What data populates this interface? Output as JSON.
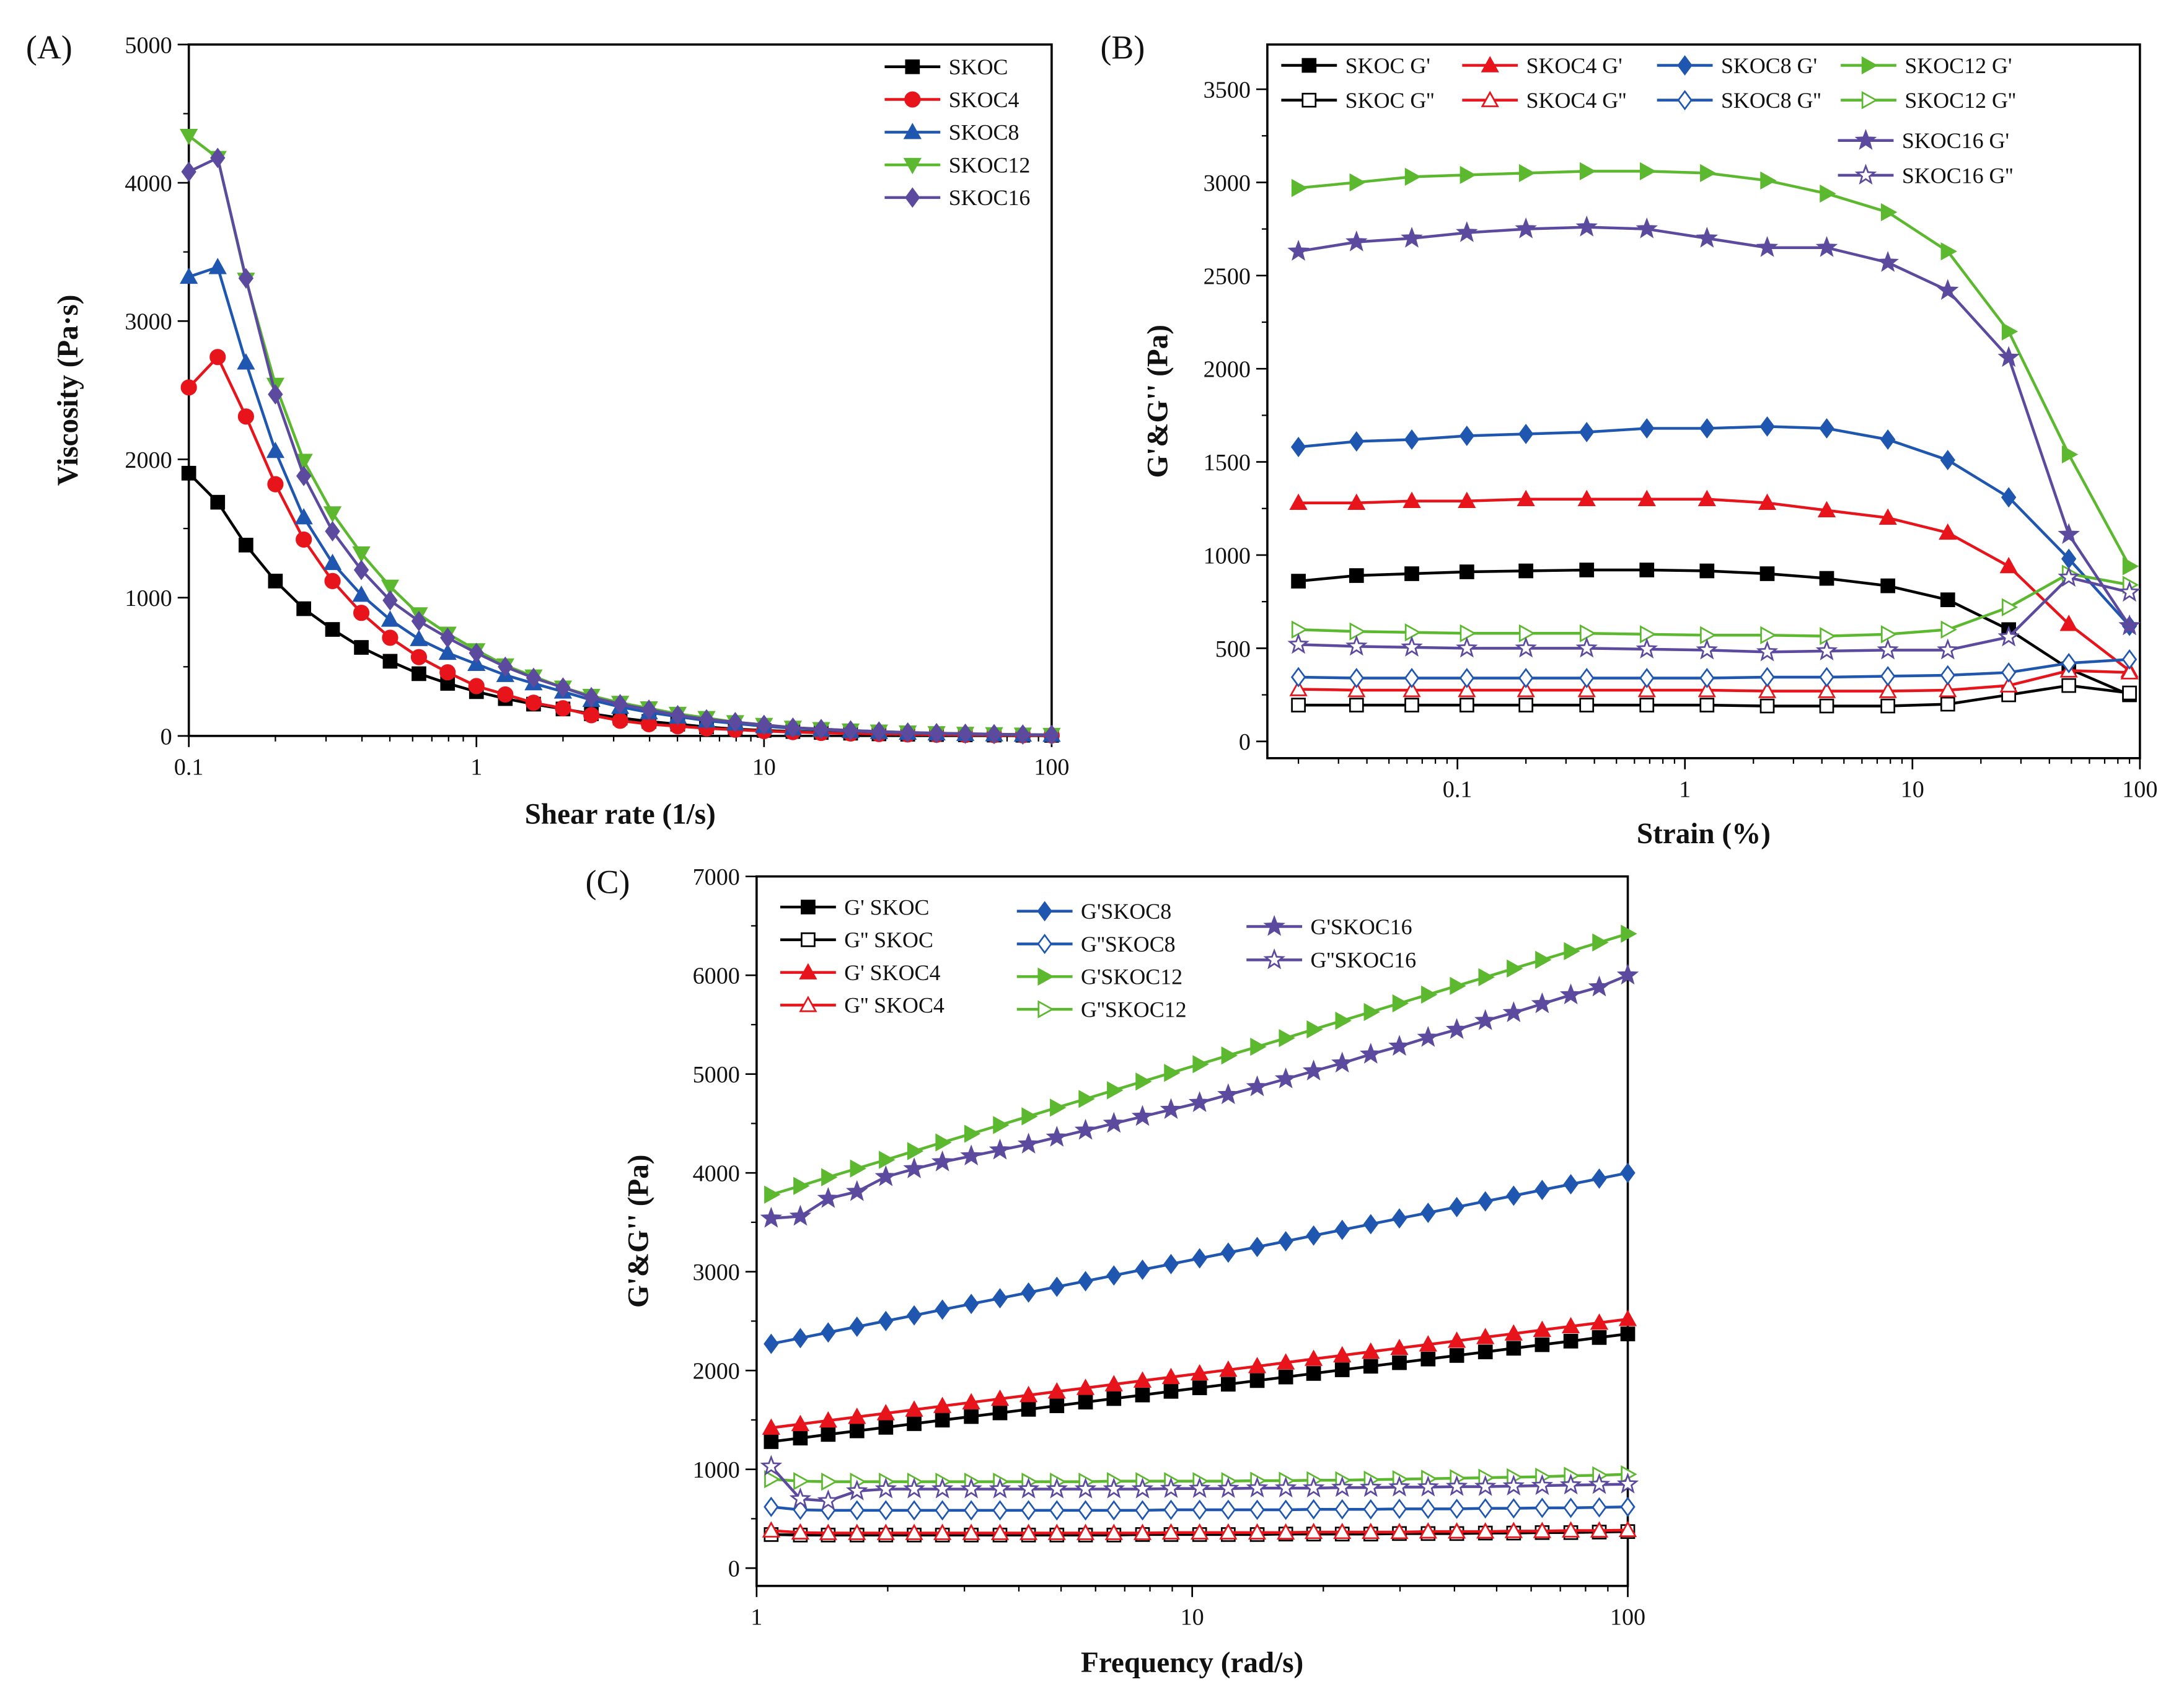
{
  "chart_data": [
    {
      "panel": "(A)",
      "type": "line",
      "xlabel": "Shear rate (1/s)",
      "ylabel": "Viscosity (Pa·s)",
      "xscale": "log",
      "xlim": [
        0.1,
        100
      ],
      "ylim": [
        0,
        5000
      ],
      "xticks": [
        {
          "v": 0.1,
          "label": "0.1"
        },
        {
          "v": 1,
          "label": "1"
        },
        {
          "v": 10,
          "label": "10"
        },
        {
          "v": 100,
          "label": "100"
        }
      ],
      "yticks": [
        {
          "v": 0,
          "label": "0"
        },
        {
          "v": 1000,
          "label": "1000"
        },
        {
          "v": 2000,
          "label": "2000"
        },
        {
          "v": 3000,
          "label": "3000"
        },
        {
          "v": 4000,
          "label": "4000"
        },
        {
          "v": 5000,
          "label": "5000"
        }
      ],
      "legend": "top-right",
      "x": [
        0.1,
        0.126,
        0.158,
        0.2,
        0.251,
        0.316,
        0.398,
        0.501,
        0.631,
        0.794,
        1,
        1.26,
        1.58,
        2,
        2.51,
        3.16,
        3.98,
        5.01,
        6.31,
        7.94,
        10,
        12.6,
        15.8,
        20,
        25.1,
        31.6,
        39.8,
        50.1,
        63.1,
        79.4,
        100
      ],
      "series": [
        {
          "name": "SKOC",
          "color": "#000000",
          "marker": "square",
          "filled": true,
          "values": [
            1900,
            1690,
            1380,
            1120,
            920,
            770,
            640,
            540,
            450,
            380,
            320,
            270,
            230,
            195,
            160,
            130,
            105,
            85,
            65,
            50,
            40,
            32,
            25,
            20,
            15,
            12,
            10,
            8,
            6,
            5,
            4
          ]
        },
        {
          "name": "SKOC4",
          "color": "#e8141b",
          "marker": "circle",
          "filled": true,
          "values": [
            2520,
            2740,
            2310,
            1820,
            1420,
            1120,
            890,
            710,
            570,
            460,
            360,
            300,
            240,
            200,
            150,
            110,
            85,
            70,
            55,
            45,
            35,
            28,
            22,
            18,
            14,
            11,
            9,
            7,
            6,
            5,
            4
          ]
        },
        {
          "name": "SKOC8",
          "color": "#1f56b0",
          "marker": "triangle-up",
          "filled": true,
          "values": [
            3320,
            3390,
            2700,
            2060,
            1580,
            1250,
            1020,
            840,
            700,
            600,
            520,
            440,
            380,
            320,
            260,
            210,
            170,
            140,
            110,
            90,
            70,
            55,
            45,
            35,
            28,
            22,
            18,
            14,
            11,
            9,
            7
          ]
        },
        {
          "name": "SKOC12",
          "color": "#5cb82e",
          "marker": "triangle-down",
          "filled": true,
          "values": [
            4340,
            4180,
            3300,
            2540,
            1990,
            1610,
            1320,
            1080,
            880,
            740,
            620,
            510,
            430,
            350,
            290,
            240,
            200,
            160,
            130,
            100,
            80,
            60,
            50,
            40,
            32,
            25,
            20,
            16,
            13,
            10,
            8
          ]
        },
        {
          "name": "SKOC16",
          "color": "#5b4a9e",
          "marker": "diamond",
          "filled": true,
          "values": [
            4080,
            4180,
            3310,
            2470,
            1880,
            1480,
            1200,
            980,
            830,
            710,
            600,
            500,
            420,
            350,
            280,
            230,
            190,
            150,
            120,
            100,
            80,
            60,
            50,
            40,
            32,
            25,
            20,
            16,
            13,
            10,
            8
          ]
        }
      ]
    },
    {
      "panel": "(B)",
      "type": "line",
      "xlabel": "Strain (%)",
      "ylabel": "G'&G'' (Pa)",
      "xscale": "log",
      "xlim": [
        0.0146,
        100
      ],
      "ylim": [
        -90,
        3740
      ],
      "xticks": [
        {
          "v": 0.1,
          "label": "0.1"
        },
        {
          "v": 1,
          "label": "1"
        },
        {
          "v": 10,
          "label": "10"
        },
        {
          "v": 100,
          "label": "100"
        }
      ],
      "yticks": [
        {
          "v": 0,
          "label": "0"
        },
        {
          "v": 500,
          "label": "500"
        },
        {
          "v": 1000,
          "label": "1000"
        },
        {
          "v": 1500,
          "label": "1500"
        },
        {
          "v": 2000,
          "label": "2000"
        },
        {
          "v": 2500,
          "label": "2500"
        },
        {
          "v": 3000,
          "label": "3000"
        },
        {
          "v": 3500,
          "label": "3500"
        }
      ],
      "legend": "top",
      "x": [
        0.02,
        0.036,
        0.063,
        0.11,
        0.2,
        0.37,
        0.68,
        1.25,
        2.3,
        4.2,
        7.8,
        14.3,
        26.5,
        48.7,
        90
      ],
      "series": [
        {
          "name": "SKOC G'",
          "color": "#000000",
          "marker": "square",
          "filled": true,
          "values": [
            860,
            890,
            900,
            910,
            915,
            920,
            920,
            915,
            900,
            875,
            835,
            760,
            600,
            390,
            250
          ]
        },
        {
          "name": "SKOC4 G'",
          "color": "#e8141b",
          "marker": "triangle-up",
          "filled": true,
          "values": [
            1280,
            1280,
            1290,
            1290,
            1300,
            1300,
            1300,
            1300,
            1280,
            1240,
            1200,
            1120,
            940,
            630,
            380
          ]
        },
        {
          "name": "SKOC8 G'",
          "color": "#1f56b0",
          "marker": "diamond",
          "filled": true,
          "values": [
            1580,
            1610,
            1620,
            1640,
            1650,
            1660,
            1680,
            1680,
            1690,
            1680,
            1620,
            1510,
            1310,
            980,
            620
          ]
        },
        {
          "name": "SKOC12 G'",
          "color": "#5cb82e",
          "marker": "triangle-right",
          "filled": true,
          "values": [
            2970,
            3000,
            3030,
            3040,
            3050,
            3060,
            3060,
            3050,
            3010,
            2940,
            2840,
            2630,
            2200,
            1540,
            940
          ]
        },
        {
          "name": "SKOC G''",
          "color": "#000000",
          "marker": "square",
          "filled": false,
          "values": [
            195,
            195,
            195,
            195,
            195,
            195,
            195,
            195,
            190,
            190,
            190,
            200,
            250,
            300,
            260
          ]
        },
        {
          "name": "SKOC4 G''",
          "color": "#e8141b",
          "marker": "triangle-up",
          "filled": false,
          "values": [
            280,
            275,
            275,
            275,
            275,
            275,
            275,
            275,
            270,
            270,
            270,
            275,
            300,
            380,
            370
          ]
        },
        {
          "name": "SKOC8 G''",
          "color": "#1f56b0",
          "marker": "diamond",
          "filled": false,
          "values": [
            345,
            340,
            340,
            340,
            340,
            340,
            340,
            340,
            345,
            345,
            350,
            355,
            370,
            420,
            440
          ]
        },
        {
          "name": "SKOC12 G''",
          "color": "#5cb82e",
          "marker": "triangle-right",
          "filled": false,
          "values": [
            600,
            590,
            585,
            580,
            580,
            580,
            575,
            570,
            570,
            565,
            575,
            600,
            720,
            900,
            840
          ]
        },
        {
          "name": "SKOC16 G'",
          "color": "#5b4a9e",
          "marker": "star",
          "filled": true,
          "values": [
            2630,
            2680,
            2700,
            2730,
            2750,
            2760,
            2750,
            2700,
            2650,
            2650,
            2570,
            2420,
            2060,
            1110,
            620
          ]
        },
        {
          "name": "SKOC16 G''",
          "color": "#5b4a9e",
          "marker": "star",
          "filled": false,
          "values": [
            520,
            510,
            505,
            500,
            500,
            500,
            495,
            490,
            480,
            485,
            490,
            490,
            560,
            880,
            800
          ]
        }
      ]
    },
    {
      "panel": "(C)",
      "type": "line",
      "xlabel": "Frequency (rad/s)",
      "ylabel": "G'&G'' (Pa)",
      "xscale": "log",
      "xlim": [
        1,
        100
      ],
      "ylim": [
        -180,
        7000
      ],
      "xticks": [
        {
          "v": 1,
          "label": "1"
        },
        {
          "v": 10,
          "label": "10"
        },
        {
          "v": 100,
          "label": "100"
        }
      ],
      "yticks": [
        {
          "v": 0,
          "label": "0"
        },
        {
          "v": 1000,
          "label": "1000"
        },
        {
          "v": 2000,
          "label": "2000"
        },
        {
          "v": 3000,
          "label": "3000"
        },
        {
          "v": 4000,
          "label": "4000"
        },
        {
          "v": 5000,
          "label": "5000"
        },
        {
          "v": 6000,
          "label": "6000"
        },
        {
          "v": 7000,
          "label": "7000"
        }
      ],
      "legend": "top-left",
      "x": [
        1.08,
        1.26,
        1.46,
        1.7,
        1.98,
        2.3,
        2.67,
        3.11,
        3.62,
        4.21,
        4.89,
        5.69,
        6.61,
        7.69,
        8.94,
        10.4,
        12.1,
        14.1,
        16.4,
        19.0,
        22.1,
        25.7,
        29.9,
        34.8,
        40.5,
        47.1,
        54.7,
        63.6,
        74.0,
        86.0,
        100
      ],
      "series": [
        {
          "name": "G' SKOC",
          "color": "#000000",
          "marker": "square",
          "filled": true,
          "values": [
            1280,
            1316,
            1353,
            1389,
            1425,
            1462,
            1498,
            1534,
            1571,
            1607,
            1643,
            1680,
            1716,
            1752,
            1789,
            1825,
            1861,
            1898,
            1934,
            1970,
            2007,
            2043,
            2079,
            2116,
            2152,
            2188,
            2225,
            2261,
            2297,
            2334,
            2370
          ]
        },
        {
          "name": "G'' SKOC",
          "color": "#000000",
          "marker": "square",
          "filled": false,
          "values": [
            340,
            335,
            335,
            335,
            335,
            335,
            335,
            335,
            335,
            335,
            335,
            335,
            335,
            340,
            340,
            340,
            340,
            340,
            345,
            345,
            345,
            345,
            350,
            350,
            350,
            355,
            355,
            360,
            360,
            365,
            370
          ]
        },
        {
          "name": "G' SKOC4",
          "color": "#e8141b",
          "marker": "triangle-up",
          "filled": true,
          "values": [
            1420,
            1457,
            1493,
            1530,
            1567,
            1603,
            1640,
            1677,
            1713,
            1750,
            1787,
            1823,
            1860,
            1897,
            1933,
            1970,
            2007,
            2043,
            2080,
            2117,
            2153,
            2190,
            2227,
            2263,
            2300,
            2337,
            2373,
            2410,
            2447,
            2483,
            2520
          ]
        },
        {
          "name": "G'' SKOC4",
          "color": "#e8141b",
          "marker": "triangle-up",
          "filled": false,
          "values": [
            380,
            360,
            355,
            355,
            355,
            355,
            355,
            355,
            355,
            355,
            355,
            355,
            355,
            355,
            360,
            360,
            360,
            360,
            360,
            365,
            365,
            365,
            365,
            370,
            370,
            370,
            375,
            375,
            380,
            380,
            385
          ]
        },
        {
          "name": "G'SKOC8",
          "color": "#1f56b0",
          "marker": "diamond",
          "filled": true,
          "values": [
            2270,
            2328,
            2385,
            2443,
            2501,
            2558,
            2616,
            2674,
            2731,
            2789,
            2847,
            2904,
            2962,
            3020,
            3077,
            3135,
            3193,
            3250,
            3308,
            3366,
            3423,
            3481,
            3539,
            3596,
            3654,
            3712,
            3769,
            3827,
            3885,
            3942,
            4000
          ]
        },
        {
          "name": "G''SKOC8",
          "color": "#1f56b0",
          "marker": "diamond",
          "filled": false,
          "values": [
            620,
            590,
            585,
            585,
            585,
            585,
            585,
            585,
            585,
            585,
            585,
            585,
            585,
            585,
            590,
            590,
            590,
            590,
            590,
            595,
            595,
            595,
            600,
            600,
            600,
            605,
            605,
            610,
            610,
            615,
            620
          ]
        },
        {
          "name": "G'SKOC12",
          "color": "#5cb82e",
          "marker": "triangle-right",
          "filled": true,
          "values": [
            3780,
            3868,
            3956,
            4044,
            4132,
            4220,
            4308,
            4396,
            4484,
            4572,
            4660,
            4748,
            4836,
            4924,
            5012,
            5100,
            5188,
            5276,
            5364,
            5452,
            5540,
            5628,
            5716,
            5804,
            5892,
            5980,
            6068,
            6156,
            6244,
            6332,
            6420
          ]
        },
        {
          "name": "G''SKOC12",
          "color": "#5cb82e",
          "marker": "triangle-right",
          "filled": false,
          "values": [
            900,
            880,
            875,
            875,
            875,
            875,
            875,
            875,
            875,
            875,
            875,
            875,
            880,
            880,
            880,
            880,
            880,
            885,
            885,
            890,
            890,
            895,
            900,
            905,
            910,
            915,
            920,
            925,
            935,
            940,
            950
          ]
        },
        {
          "name": "G'SKOC16",
          "color": "#5b4a9e",
          "marker": "star",
          "filled": true,
          "values": [
            3540,
            3560,
            3740,
            3810,
            3960,
            4040,
            4110,
            4170,
            4230,
            4290,
            4360,
            4430,
            4500,
            4570,
            4640,
            4710,
            4790,
            4870,
            4950,
            5030,
            5110,
            5200,
            5280,
            5370,
            5450,
            5540,
            5620,
            5710,
            5800,
            5880,
            6000
          ]
        },
        {
          "name": "G''SKOC16",
          "color": "#5b4a9e",
          "marker": "star",
          "filled": false,
          "values": [
            1030,
            700,
            680,
            780,
            800,
            800,
            800,
            800,
            800,
            800,
            800,
            800,
            800,
            800,
            805,
            805,
            805,
            810,
            810,
            810,
            815,
            815,
            820,
            820,
            825,
            825,
            830,
            835,
            840,
            845,
            850
          ]
        }
      ]
    }
  ]
}
